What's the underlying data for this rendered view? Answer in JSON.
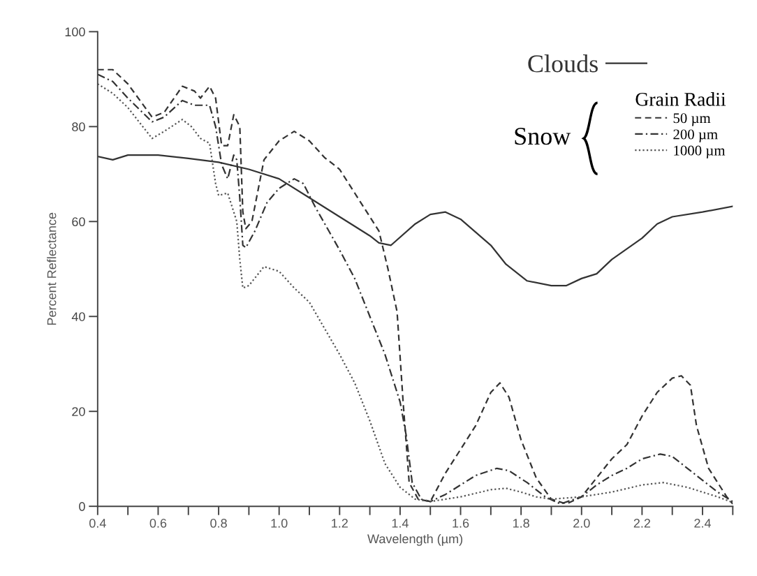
{
  "chart_data": {
    "type": "line",
    "xlabel": "Wavelength (µm)",
    "ylabel": "Percent Reflectance",
    "xlim": [
      0.4,
      2.5
    ],
    "ylim": [
      0,
      100
    ],
    "xticks": [
      0.4,
      {
        "value": 0.5,
        "label": null
      },
      0.6,
      {
        "value": 0.7,
        "label": null
      },
      0.8,
      {
        "value": 0.9,
        "label": null
      },
      {
        "value": 1.0,
        "label": "1.0"
      },
      {
        "value": 1.1,
        "label": null
      },
      1.2,
      {
        "value": 1.3,
        "label": null
      },
      1.4,
      {
        "value": 1.5,
        "label": null
      },
      1.6,
      {
        "value": 1.7,
        "label": null
      },
      1.8,
      {
        "value": 1.9,
        "label": null
      },
      {
        "value": 2.0,
        "label": "2.0"
      },
      {
        "value": 2.1,
        "label": null
      },
      2.2,
      {
        "value": 2.3,
        "label": null
      },
      2.4,
      {
        "value": 2.5,
        "label": null
      }
    ],
    "yticks": [
      0,
      20,
      40,
      60,
      80,
      100
    ],
    "grid": false,
    "legend": "top right",
    "legend_title": "Grain Radii",
    "annotations": [
      "Snow"
    ],
    "series": [
      {
        "name": "Clouds",
        "color": "#333333",
        "line_style": "solid",
        "x": [
          0.4,
          0.45,
          0.5,
          0.6,
          0.7,
          0.8,
          0.9,
          1.0,
          1.1,
          1.2,
          1.3,
          1.33,
          1.37,
          1.45,
          1.5,
          1.55,
          1.6,
          1.7,
          1.75,
          1.82,
          1.9,
          1.95,
          2.0,
          2.05,
          2.1,
          2.2,
          2.25,
          2.3,
          2.4,
          2.5
        ],
        "values": [
          73.7,
          73,
          74,
          74,
          73.3,
          72.5,
          71,
          69,
          65,
          61,
          57,
          55.5,
          55,
          59.5,
          61.5,
          62,
          60.5,
          55,
          51,
          47.5,
          46.5,
          46.5,
          48,
          49,
          52,
          56.5,
          59.5,
          61,
          62,
          63.2
        ]
      },
      {
        "name": "50 µm",
        "color": "#333333",
        "line_style": "dashed",
        "x": [
          0.4,
          0.45,
          0.5,
          0.58,
          0.62,
          0.68,
          0.72,
          0.74,
          0.77,
          0.79,
          0.81,
          0.83,
          0.85,
          0.87,
          0.88,
          0.89,
          0.91,
          0.95,
          1.0,
          1.05,
          1.1,
          1.15,
          1.2,
          1.25,
          1.3,
          1.33,
          1.36,
          1.39,
          1.41,
          1.43,
          1.46,
          1.5,
          1.55,
          1.6,
          1.65,
          1.7,
          1.73,
          1.76,
          1.8,
          1.85,
          1.9,
          1.95,
          2.0,
          2.05,
          2.1,
          2.15,
          2.2,
          2.25,
          2.3,
          2.33,
          2.36,
          2.38,
          2.42,
          2.48,
          2.5
        ],
        "values": [
          92,
          92,
          89,
          82,
          83,
          88.5,
          87.5,
          86,
          88.5,
          86,
          76,
          76,
          82.5,
          80,
          62,
          58.5,
          60,
          73,
          77,
          79,
          77,
          73.5,
          71,
          66,
          61,
          58,
          50,
          41,
          22,
          5,
          1.5,
          1,
          7,
          12,
          17,
          24,
          26,
          23,
          14,
          6,
          1.5,
          0.5,
          2,
          6,
          10,
          13,
          19,
          24,
          27,
          27.5,
          25.5,
          17,
          8,
          2,
          0.5
        ]
      },
      {
        "name": "200 µm",
        "color": "#333333",
        "line_style": "dashdot",
        "x": [
          0.4,
          0.45,
          0.5,
          0.58,
          0.62,
          0.68,
          0.72,
          0.77,
          0.79,
          0.81,
          0.83,
          0.85,
          0.86,
          0.87,
          0.88,
          0.89,
          0.92,
          0.96,
          1.0,
          1.05,
          1.08,
          1.12,
          1.2,
          1.25,
          1.3,
          1.35,
          1.4,
          1.42,
          1.44,
          1.47,
          1.5,
          1.55,
          1.6,
          1.65,
          1.72,
          1.76,
          1.82,
          1.88,
          1.93,
          2.0,
          2.05,
          2.1,
          2.15,
          2.2,
          2.26,
          2.3,
          2.35,
          2.4,
          2.45,
          2.5
        ],
        "values": [
          91,
          89.5,
          86,
          81,
          82,
          85.5,
          84.5,
          84.5,
          80,
          72,
          69,
          74,
          73,
          65,
          55,
          54.5,
          58,
          64,
          67,
          69,
          68,
          63,
          54,
          48,
          40,
          32,
          22,
          15,
          5,
          1.5,
          1,
          2.5,
          4.5,
          6.5,
          8,
          7.5,
          5,
          2,
          0.5,
          2,
          4.5,
          6.5,
          8,
          10,
          11,
          10.5,
          8,
          5.5,
          3,
          1
        ]
      },
      {
        "name": "1000 µm",
        "color": "#555555",
        "line_style": "dotted",
        "x": [
          0.4,
          0.45,
          0.5,
          0.58,
          0.62,
          0.68,
          0.71,
          0.74,
          0.77,
          0.79,
          0.8,
          0.83,
          0.86,
          0.87,
          0.88,
          0.9,
          0.95,
          1.0,
          1.05,
          1.1,
          1.2,
          1.25,
          1.3,
          1.35,
          1.4,
          1.45,
          1.5,
          1.6,
          1.7,
          1.75,
          1.8,
          1.85,
          1.9,
          2.0,
          2.1,
          2.2,
          2.27,
          2.35,
          2.45,
          2.5
        ],
        "values": [
          89,
          87,
          84,
          77.5,
          79,
          81.5,
          80,
          77.5,
          76.5,
          68,
          65.5,
          66,
          60,
          52,
          46,
          46.5,
          50.5,
          49.5,
          46,
          43,
          32,
          26,
          18,
          9,
          4,
          1.5,
          1,
          2,
          3.5,
          3.8,
          3,
          2,
          1.5,
          2,
          3,
          4.5,
          5,
          4,
          2,
          0.8
        ]
      }
    ]
  }
}
